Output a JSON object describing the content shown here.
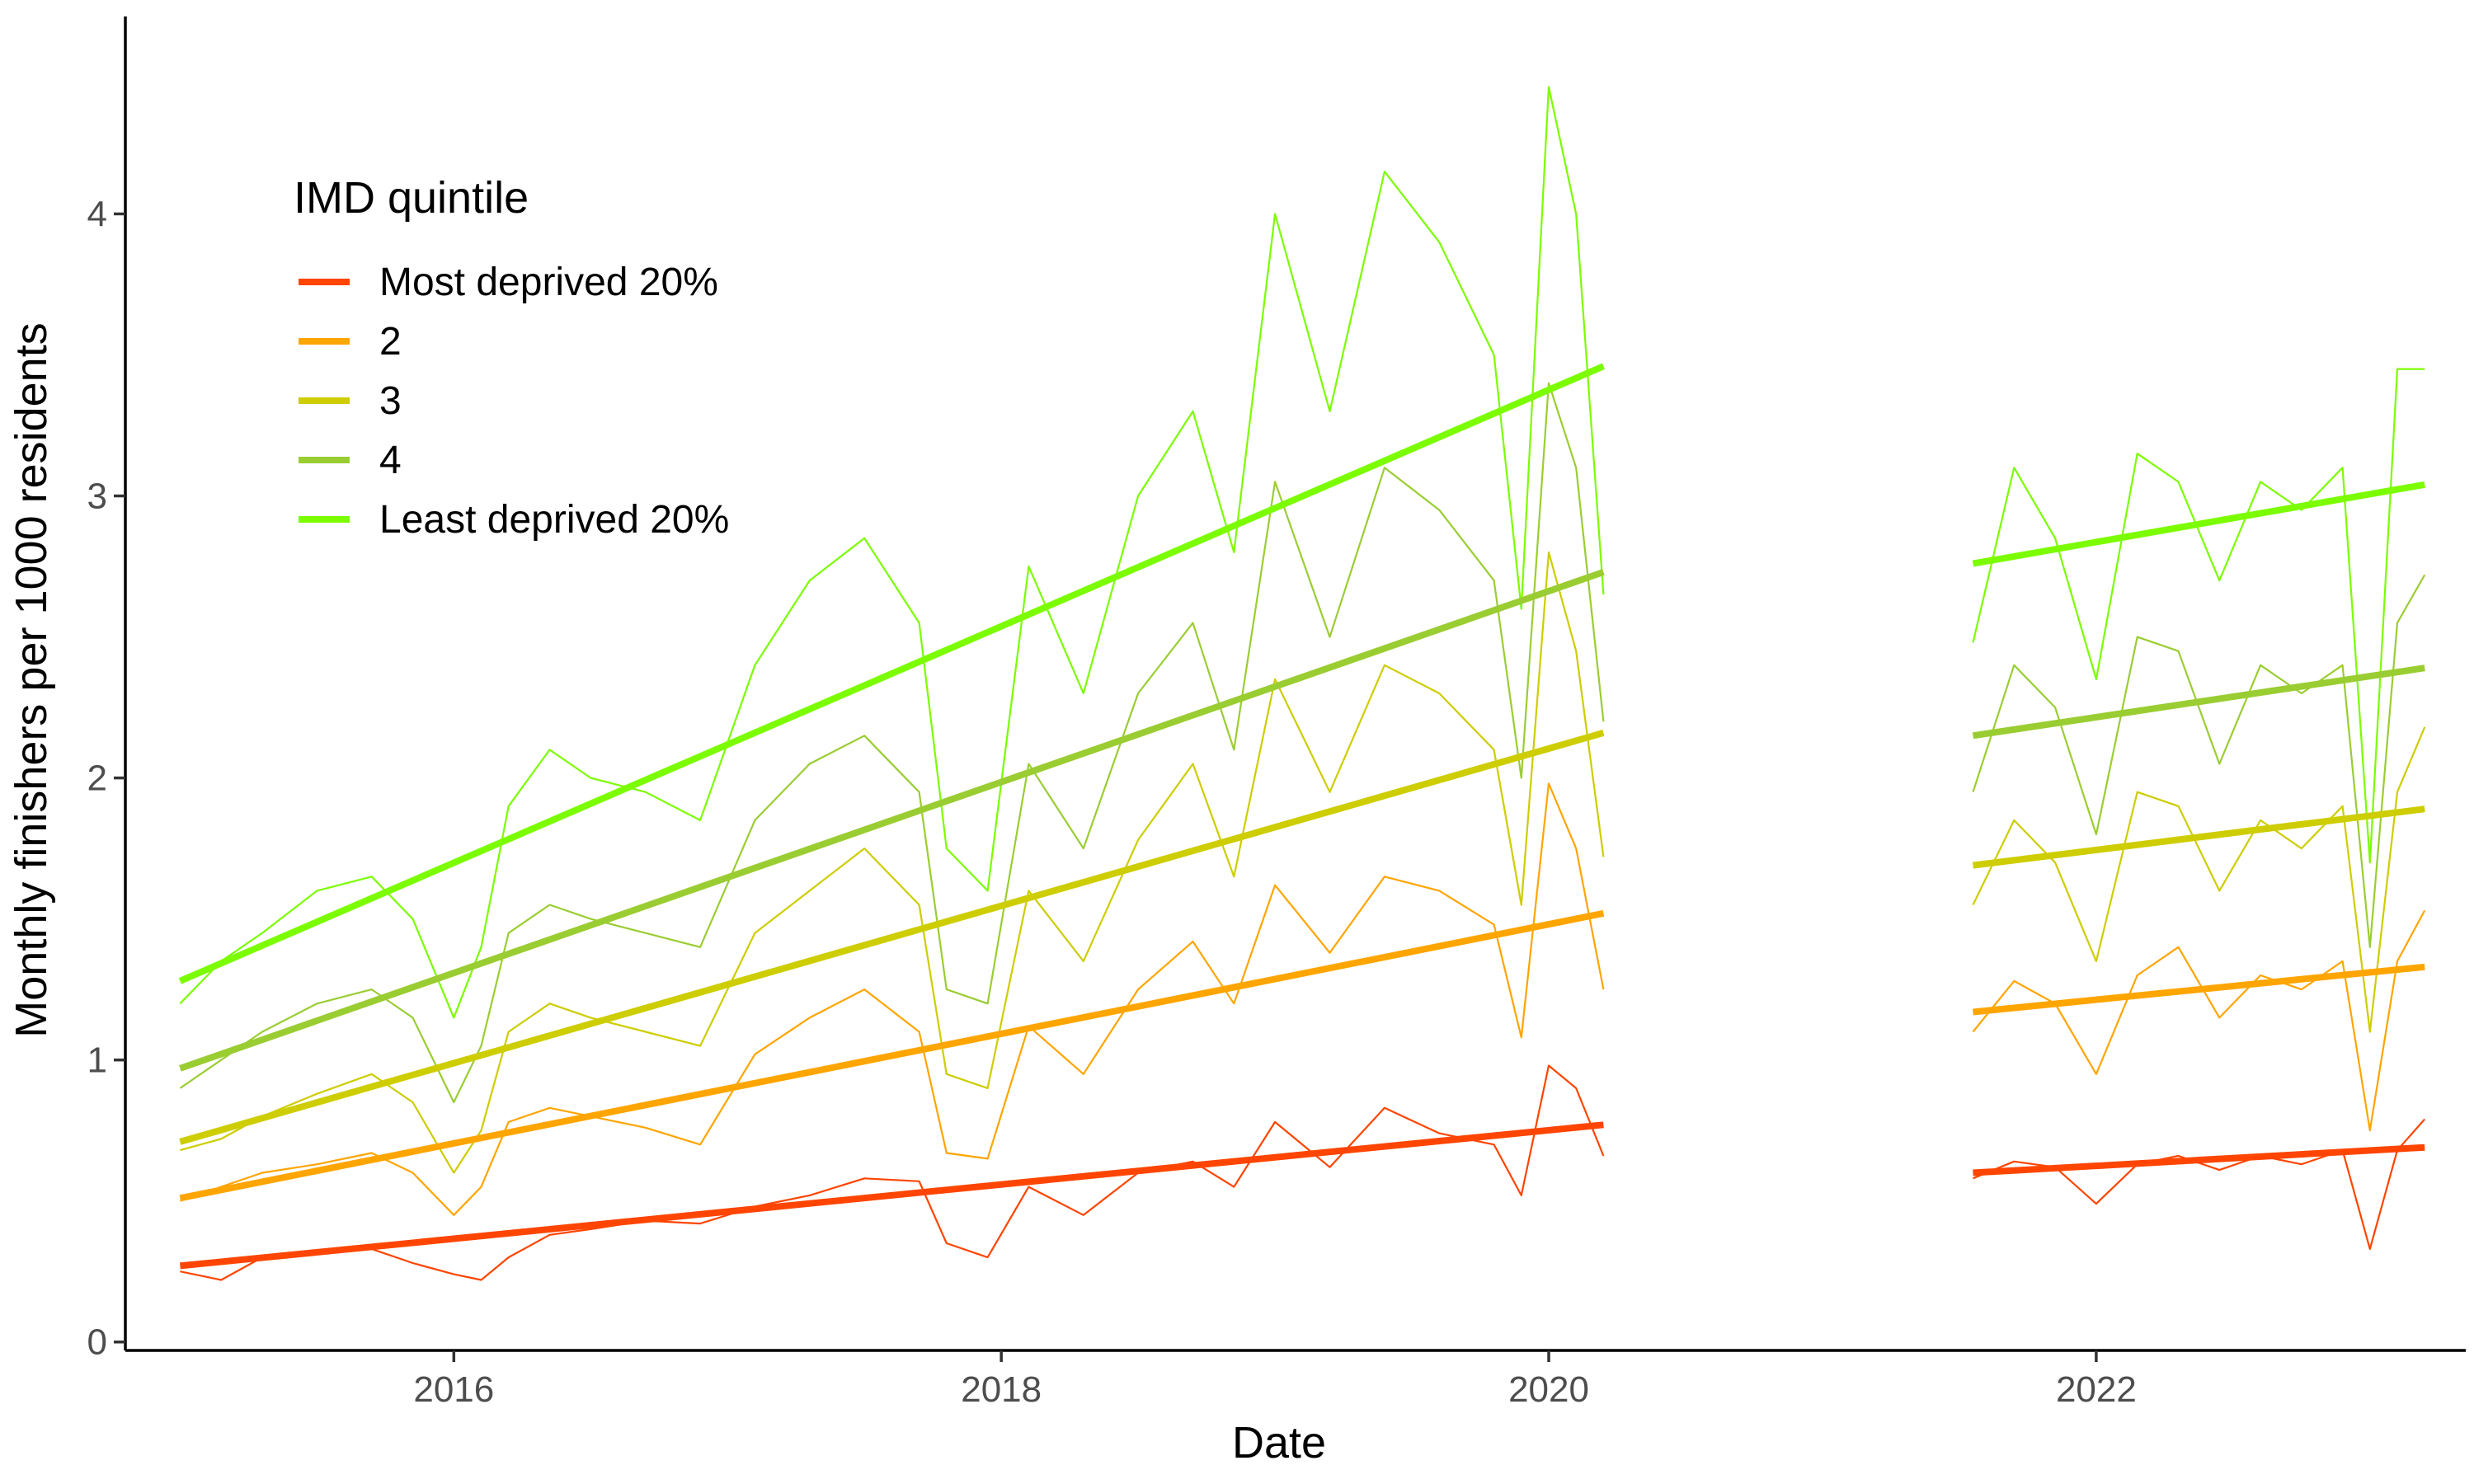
{
  "chart_data": {
    "type": "line",
    "xlabel": "Date",
    "ylabel": "Monthly finishers per 1000 residents",
    "xlim": [
      2014.8,
      2023.35
    ],
    "ylim": [
      -0.03,
      4.7
    ],
    "x_ticks": [
      2016,
      2018,
      2020,
      2022
    ],
    "x_tick_labels": [
      "2016",
      "2018",
      "2020",
      "2022"
    ],
    "y_ticks": [
      0,
      1,
      2,
      3,
      4
    ],
    "y_tick_labels": [
      "0",
      "1",
      "2",
      "3",
      "4"
    ],
    "grid": false,
    "legend": {
      "title": "IMD quintile",
      "position": "top-left"
    },
    "series": [
      {
        "name": "Most deprived 20%",
        "color": "#FF4500",
        "trend": [
          {
            "x": [
              2015.0,
              2020.2
            ],
            "y": [
              0.27,
              0.77
            ]
          },
          {
            "x": [
              2021.55,
              2023.2
            ],
            "y": [
              0.6,
              0.69
            ]
          }
        ],
        "observed": [
          {
            "x": [
              2015.0,
              2015.15,
              2015.3,
              2015.5,
              2015.7,
              2015.85,
              2016.0,
              2016.1,
              2016.2,
              2016.35,
              2016.5,
              2016.7,
              2016.9,
              2017.1,
              2017.3,
              2017.5,
              2017.7,
              2017.8,
              2017.95,
              2018.1,
              2018.3,
              2018.5,
              2018.7,
              2018.85,
              2019.0,
              2019.2,
              2019.4,
              2019.6,
              2019.8,
              2019.9,
              2020.0,
              2020.1,
              2020.2
            ],
            "y": [
              0.25,
              0.22,
              0.3,
              0.32,
              0.33,
              0.28,
              0.24,
              0.22,
              0.3,
              0.38,
              0.4,
              0.43,
              0.42,
              0.48,
              0.52,
              0.58,
              0.57,
              0.35,
              0.3,
              0.55,
              0.45,
              0.6,
              0.64,
              0.55,
              0.78,
              0.62,
              0.83,
              0.74,
              0.7,
              0.52,
              0.98,
              0.9,
              0.66
            ]
          },
          {
            "x": [
              2021.55,
              2021.7,
              2021.85,
              2022.0,
              2022.15,
              2022.3,
              2022.45,
              2022.6,
              2022.75,
              2022.9,
              2023.0,
              2023.1,
              2023.2
            ],
            "y": [
              0.58,
              0.64,
              0.62,
              0.49,
              0.63,
              0.66,
              0.61,
              0.66,
              0.63,
              0.68,
              0.33,
              0.68,
              0.79
            ]
          }
        ]
      },
      {
        "name": "2",
        "color": "#FFA500",
        "trend": [
          {
            "x": [
              2015.0,
              2020.2
            ],
            "y": [
              0.51,
              1.52
            ]
          },
          {
            "x": [
              2021.55,
              2023.2
            ],
            "y": [
              1.17,
              1.33
            ]
          }
        ],
        "observed": [
          {
            "x": [
              2015.0,
              2015.15,
              2015.3,
              2015.5,
              2015.7,
              2015.85,
              2016.0,
              2016.1,
              2016.2,
              2016.35,
              2016.5,
              2016.7,
              2016.9,
              2017.1,
              2017.3,
              2017.5,
              2017.7,
              2017.8,
              2017.95,
              2018.1,
              2018.3,
              2018.5,
              2018.7,
              2018.85,
              2019.0,
              2019.2,
              2019.4,
              2019.6,
              2019.8,
              2019.9,
              2020.0,
              2020.1,
              2020.2
            ],
            "y": [
              0.5,
              0.55,
              0.6,
              0.63,
              0.67,
              0.6,
              0.45,
              0.55,
              0.78,
              0.83,
              0.8,
              0.76,
              0.7,
              1.02,
              1.15,
              1.25,
              1.1,
              0.67,
              0.65,
              1.12,
              0.95,
              1.25,
              1.42,
              1.2,
              1.62,
              1.38,
              1.65,
              1.6,
              1.48,
              1.08,
              1.98,
              1.75,
              1.25
            ]
          },
          {
            "x": [
              2021.55,
              2021.7,
              2021.85,
              2022.0,
              2022.15,
              2022.3,
              2022.45,
              2022.6,
              2022.75,
              2022.9,
              2023.0,
              2023.1,
              2023.2
            ],
            "y": [
              1.1,
              1.28,
              1.2,
              0.95,
              1.3,
              1.4,
              1.15,
              1.3,
              1.25,
              1.35,
              0.75,
              1.35,
              1.53
            ]
          }
        ]
      },
      {
        "name": "3",
        "color": "#CDCD00",
        "trend": [
          {
            "x": [
              2015.0,
              2020.2
            ],
            "y": [
              0.71,
              2.16
            ]
          },
          {
            "x": [
              2021.55,
              2023.2
            ],
            "y": [
              1.69,
              1.89
            ]
          }
        ],
        "observed": [
          {
            "x": [
              2015.0,
              2015.15,
              2015.3,
              2015.5,
              2015.7,
              2015.85,
              2016.0,
              2016.1,
              2016.2,
              2016.35,
              2016.5,
              2016.7,
              2016.9,
              2017.1,
              2017.3,
              2017.5,
              2017.7,
              2017.8,
              2017.95,
              2018.1,
              2018.3,
              2018.5,
              2018.7,
              2018.85,
              2019.0,
              2019.2,
              2019.4,
              2019.6,
              2019.8,
              2019.9,
              2020.0,
              2020.1,
              2020.2
            ],
            "y": [
              0.68,
              0.72,
              0.8,
              0.88,
              0.95,
              0.85,
              0.6,
              0.75,
              1.1,
              1.2,
              1.15,
              1.1,
              1.05,
              1.45,
              1.6,
              1.75,
              1.55,
              0.95,
              0.9,
              1.6,
              1.35,
              1.78,
              2.05,
              1.65,
              2.35,
              1.95,
              2.4,
              2.3,
              2.1,
              1.55,
              2.8,
              2.45,
              1.72
            ]
          },
          {
            "x": [
              2021.55,
              2021.7,
              2021.85,
              2022.0,
              2022.15,
              2022.3,
              2022.45,
              2022.6,
              2022.75,
              2022.9,
              2023.0,
              2023.1,
              2023.2
            ],
            "y": [
              1.55,
              1.85,
              1.7,
              1.35,
              1.95,
              1.9,
              1.6,
              1.85,
              1.75,
              1.9,
              1.1,
              1.95,
              2.18
            ]
          }
        ]
      },
      {
        "name": "4",
        "color": "#9ACD32",
        "trend": [
          {
            "x": [
              2015.0,
              2020.2
            ],
            "y": [
              0.97,
              2.73
            ]
          },
          {
            "x": [
              2021.55,
              2023.2
            ],
            "y": [
              2.15,
              2.39
            ]
          }
        ],
        "observed": [
          {
            "x": [
              2015.0,
              2015.15,
              2015.3,
              2015.5,
              2015.7,
              2015.85,
              2016.0,
              2016.1,
              2016.2,
              2016.35,
              2016.5,
              2016.7,
              2016.9,
              2017.1,
              2017.3,
              2017.5,
              2017.7,
              2017.8,
              2017.95,
              2018.1,
              2018.3,
              2018.5,
              2018.7,
              2018.85,
              2019.0,
              2019.2,
              2019.4,
              2019.6,
              2019.8,
              2019.9,
              2020.0,
              2020.1,
              2020.2
            ],
            "y": [
              0.9,
              1.0,
              1.1,
              1.2,
              1.25,
              1.15,
              0.85,
              1.05,
              1.45,
              1.55,
              1.5,
              1.45,
              1.4,
              1.85,
              2.05,
              2.15,
              1.95,
              1.25,
              1.2,
              2.05,
              1.75,
              2.3,
              2.55,
              2.1,
              3.05,
              2.5,
              3.1,
              2.95,
              2.7,
              2.0,
              3.4,
              3.1,
              2.2
            ]
          },
          {
            "x": [
              2021.55,
              2021.7,
              2021.85,
              2022.0,
              2022.15,
              2022.3,
              2022.45,
              2022.6,
              2022.75,
              2022.9,
              2023.0,
              2023.1,
              2023.2
            ],
            "y": [
              1.95,
              2.4,
              2.25,
              1.8,
              2.5,
              2.45,
              2.05,
              2.4,
              2.3,
              2.4,
              1.4,
              2.55,
              2.72
            ]
          }
        ]
      },
      {
        "name": "Least deprived 20%",
        "color": "#7CFC00",
        "trend": [
          {
            "x": [
              2015.0,
              2020.2
            ],
            "y": [
              1.28,
              3.46
            ]
          },
          {
            "x": [
              2021.55,
              2023.2
            ],
            "y": [
              2.76,
              3.04
            ]
          }
        ],
        "observed": [
          {
            "x": [
              2015.0,
              2015.15,
              2015.3,
              2015.5,
              2015.7,
              2015.85,
              2016.0,
              2016.1,
              2016.2,
              2016.35,
              2016.5,
              2016.7,
              2016.9,
              2017.1,
              2017.3,
              2017.5,
              2017.7,
              2017.8,
              2017.95,
              2018.1,
              2018.3,
              2018.5,
              2018.7,
              2018.85,
              2019.0,
              2019.2,
              2019.4,
              2019.6,
              2019.8,
              2019.9,
              2020.0,
              2020.1,
              2020.2
            ],
            "y": [
              1.2,
              1.35,
              1.45,
              1.6,
              1.65,
              1.5,
              1.15,
              1.4,
              1.9,
              2.1,
              2.0,
              1.95,
              1.85,
              2.4,
              2.7,
              2.85,
              2.55,
              1.75,
              1.6,
              2.75,
              2.3,
              3.0,
              3.3,
              2.8,
              4.0,
              3.3,
              4.15,
              3.9,
              3.5,
              2.6,
              4.45,
              4.0,
              2.65
            ]
          },
          {
            "x": [
              2021.55,
              2021.7,
              2021.85,
              2022.0,
              2022.15,
              2022.3,
              2022.45,
              2022.6,
              2022.75,
              2022.9,
              2023.0,
              2023.1,
              2023.2
            ],
            "y": [
              2.48,
              3.1,
              2.85,
              2.35,
              3.15,
              3.05,
              2.7,
              3.05,
              2.95,
              3.1,
              1.7,
              3.45,
              3.45
            ]
          }
        ]
      }
    ]
  }
}
